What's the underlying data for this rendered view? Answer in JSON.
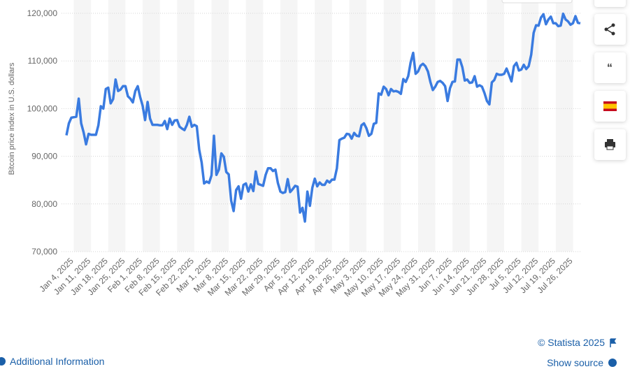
{
  "chart_data": {
    "type": "line",
    "y_label": "Bitcoin price index in U.S. dollars",
    "categories": [
      null,
      null,
      null,
      "Jan 4, 2025",
      null,
      null,
      null,
      null,
      null,
      null,
      "Jan 11, 2025",
      null,
      null,
      null,
      null,
      null,
      null,
      "Jan 18, 2025",
      null,
      null,
      null,
      null,
      null,
      null,
      "Jan 25, 2025",
      null,
      null,
      null,
      null,
      null,
      null,
      "Feb 1, 2025",
      null,
      null,
      null,
      null,
      null,
      null,
      "Feb 8, 2025",
      null,
      null,
      null,
      null,
      null,
      null,
      "Feb 15, 2025",
      null,
      null,
      null,
      null,
      null,
      null,
      "Feb 22, 2025",
      null,
      null,
      null,
      null,
      null,
      null,
      "Mar 1, 2025",
      null,
      null,
      null,
      null,
      null,
      null,
      "Mar 8, 2025",
      null,
      null,
      null,
      null,
      null,
      null,
      "Mar 15, 2025",
      null,
      null,
      null,
      null,
      null,
      null,
      "Mar 22, 2025",
      null,
      null,
      null,
      null,
      null,
      null,
      "Mar 29, 2025",
      null,
      null,
      null,
      null,
      null,
      null,
      "Apr 5, 2025",
      null,
      null,
      null,
      null,
      null,
      null,
      "Apr 12, 2025",
      null,
      null,
      null,
      null,
      null,
      null,
      "Apr 19, 2025",
      null,
      null,
      null,
      null,
      null,
      null,
      "Apr 26, 2025",
      null,
      null,
      null,
      null,
      null,
      null,
      "May 3, 2025",
      null,
      null,
      null,
      null,
      null,
      null,
      "May 10, 2025",
      null,
      null,
      null,
      null,
      null,
      null,
      "May 17, 2025",
      null,
      null,
      null,
      null,
      null,
      null,
      "May 24, 2025",
      null,
      null,
      null,
      null,
      null,
      null,
      "May 31, 2025",
      null,
      null,
      null,
      null,
      null,
      null,
      "Jun 7, 2025",
      null,
      null,
      null,
      null,
      null,
      null,
      "Jun 14, 2025",
      null,
      null,
      null,
      null,
      null,
      null,
      "Jun 21, 2025",
      null,
      null,
      null,
      null,
      null,
      null,
      "Jun 28, 2025",
      null,
      null,
      null,
      null,
      null,
      null,
      "Jul 5, 2025",
      null,
      null,
      null,
      null,
      null,
      null,
      "Jul 12, 2025",
      null,
      null,
      null,
      null,
      null,
      null,
      "Jul 19, 2025",
      null,
      null,
      null,
      null,
      null,
      null,
      "Jul 26, 2025",
      null,
      null,
      null
    ],
    "series": [
      {
        "color": "#3a7be0",
        "values": [
          94400,
          96900,
          98100,
          98200,
          98300,
          102100,
          96900,
          95000,
          92500,
          94700,
          94500,
          94500,
          94500,
          96500,
          100500,
          100000,
          104100,
          104400,
          101100,
          102000,
          106100,
          103700,
          104000,
          104700,
          104700,
          102600,
          102100,
          101300,
          103700,
          104700,
          102400,
          100600,
          97600,
          101400,
          97900,
          96600,
          96600,
          96600,
          96500,
          96500,
          97400,
          95700,
          97900,
          96600,
          97500,
          97600,
          96200,
          95800,
          95500,
          96600,
          98300,
          96200,
          96600,
          96300,
          91400,
          88700,
          84300,
          84700,
          84400,
          86000,
          94300,
          86100,
          87200,
          90600,
          89900,
          86700,
          86200,
          80700,
          78500,
          82900,
          83700,
          81100,
          84000,
          84300,
          82600,
          84100,
          82700,
          86800,
          84200,
          84000,
          83800,
          86100,
          87500,
          87500,
          86900,
          87200,
          84400,
          82600,
          82300,
          82500,
          85200,
          82500,
          83100,
          83800,
          83600,
          78200,
          79200,
          76300,
          82600,
          79600,
          83400,
          85300,
          83700,
          84500,
          84000,
          84000,
          84900,
          84500,
          85100,
          85100,
          87500,
          93400,
          93700,
          93900,
          94700,
          94600,
          93700,
          94900,
          94300,
          94200,
          96500,
          96900,
          95900,
          94300,
          94700,
          96800,
          97000,
          103200,
          102900,
          104600,
          104100,
          102800,
          104100,
          103600,
          103700,
          103500,
          103100,
          106200,
          105600,
          106800,
          109700,
          111700,
          107300,
          107800,
          109000,
          109400,
          108900,
          107800,
          105600,
          103900,
          104600,
          105600,
          105800,
          105400,
          104700,
          101600,
          104300,
          105600,
          105700,
          110300,
          110300,
          108700,
          105900,
          106100,
          105400,
          105500,
          106800,
          104600,
          104900,
          104600,
          103300,
          101600,
          100900,
          105500,
          106000,
          107300,
          107100,
          107100,
          107300,
          108400,
          107100,
          105700,
          108900,
          109600,
          108000,
          108200,
          109200,
          108300,
          108900,
          111300,
          115900,
          117500,
          117400,
          119100,
          119800,
          117700,
          118700,
          119300,
          117900,
          117900,
          117300,
          117400,
          119900,
          118700,
          118300,
          117600,
          117900,
          119400,
          118000,
          117900
        ]
      }
    ],
    "ylim": [
      70000,
      120000
    ],
    "yticks": [
      {
        "value": 70000,
        "label": "70,000"
      },
      {
        "value": 80000,
        "label": "80,000"
      },
      {
        "value": 90000,
        "label": "90,000"
      },
      {
        "value": 100000,
        "label": "100,000"
      },
      {
        "value": 110000,
        "label": "110,000"
      },
      {
        "value": 120000,
        "label": "120,000"
      }
    ],
    "grid": true
  },
  "footer": {
    "copyright": "© Statista 2025",
    "additional_info": "Additional Information",
    "show_source": "Show source"
  }
}
